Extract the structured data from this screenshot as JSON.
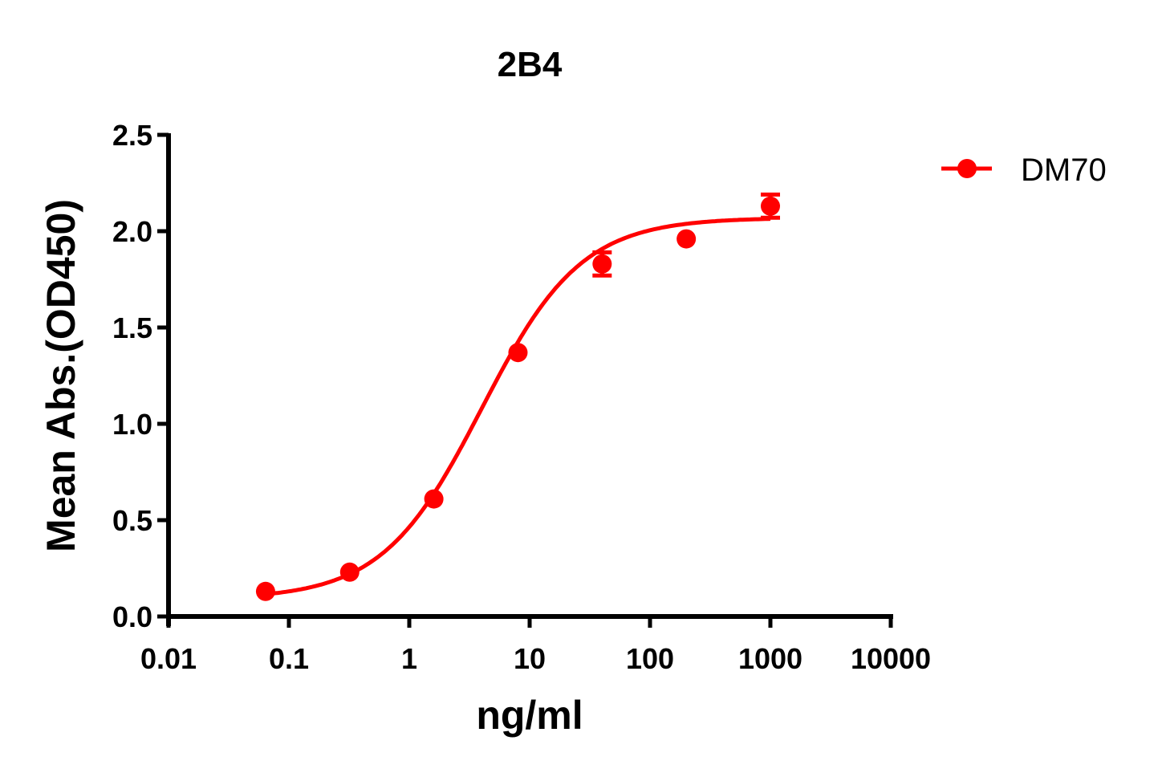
{
  "chart_data": {
    "type": "scatter",
    "title": "2B4",
    "xlabel": "ng/ml",
    "ylabel": "Mean Abs.(OD450)",
    "xscale": "log",
    "xlim": [
      0.01,
      10000
    ],
    "ylim": [
      0,
      2.5
    ],
    "x_ticks": [
      "0.01",
      "0.1",
      "1",
      "10",
      "100",
      "1000",
      "10000"
    ],
    "y_ticks": [
      "0.0",
      "0.5",
      "1.0",
      "1.5",
      "2.0",
      "2.5"
    ],
    "grid": false,
    "legend_position": "top-right, outside plot",
    "fit": "4PL sigmoidal curve",
    "series": [
      {
        "name": "DM70",
        "color": "#ff0000",
        "marker": "circle",
        "x": [
          0.064,
          0.32,
          1.6,
          8,
          40,
          200,
          1000
        ],
        "y": [
          0.13,
          0.23,
          0.61,
          1.37,
          1.83,
          1.96,
          2.13
        ],
        "error": [
          0.0,
          0.0,
          0.0,
          0.0,
          0.06,
          0.0,
          0.06
        ],
        "fit_params": {
          "bottom": 0.09,
          "top": 2.07,
          "ec50": 4.0,
          "hill": 1.05
        }
      }
    ]
  },
  "legend": {
    "items": [
      {
        "label": "DM70",
        "color": "#ff0000"
      }
    ]
  }
}
